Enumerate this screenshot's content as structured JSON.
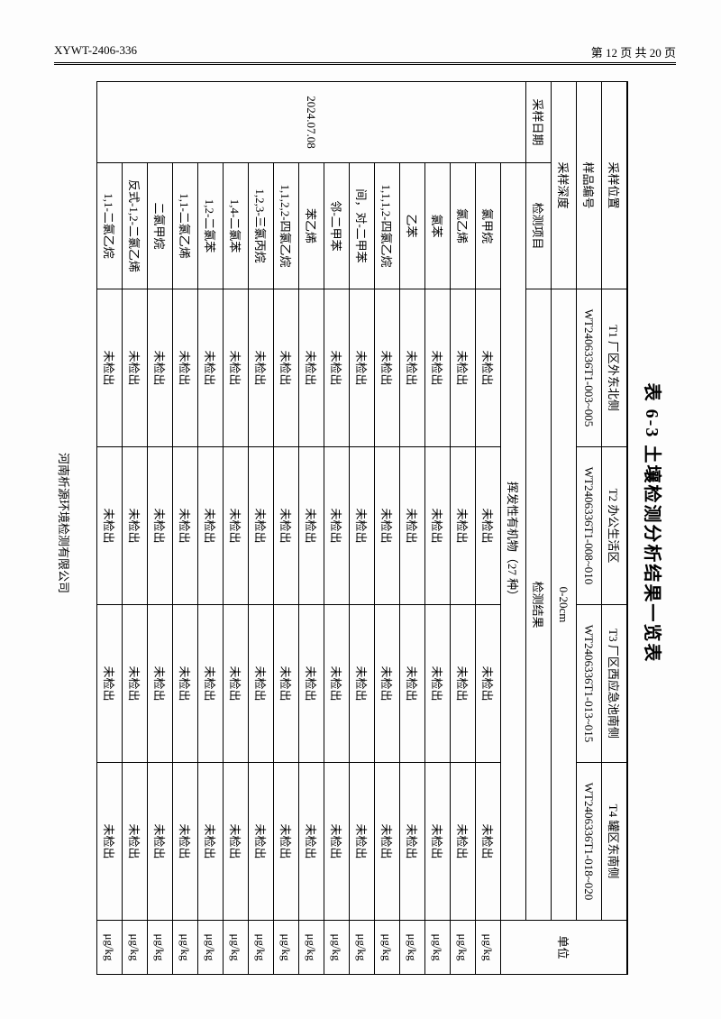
{
  "header": {
    "left": "XYWT-2406-336",
    "right": "第 12 页 共 20 页"
  },
  "title": "表 6-3  土壤检测分析结果一览表",
  "labels": {
    "sample_pos": "采样位置",
    "sample_code": "样品编号",
    "sample_depth": "采样深度",
    "sample_date": "采样日期",
    "item": "检测项目",
    "result": "检测结果",
    "unit": "单位"
  },
  "columns": {
    "t1": {
      "pos": "T1 厂区外东北侧",
      "code": "WT2406336T1-003~005"
    },
    "t2": {
      "pos": "T2 办公生活区",
      "code": "WT2406336T1-008~010"
    },
    "t3": {
      "pos": "T3 厂区西应急池南侧",
      "code": "WT2406336T1-013~015"
    },
    "t4": {
      "pos": "T4 罐区东南侧",
      "code": "WT2406336T1-018~020"
    }
  },
  "depth": "0-20cm",
  "group": "挥发性有机物（27 种）",
  "date": "2024.07.08",
  "nd": "未检出",
  "u": "μg/kg",
  "items": [
    "氯甲烷",
    "氯乙烯",
    "氯苯",
    "乙苯",
    "1,1,1,2-四氯乙烷",
    "间，对-二甲苯",
    "邻-二甲苯",
    "苯乙烯",
    "1,1,2,2-四氯乙烷",
    "1,2,3-三氯丙烷",
    "1,4-二氯苯",
    "1,2-二氯苯",
    "1,1-二氯乙烯",
    "二氯甲烷",
    "反式-1,2-二氯乙烯",
    "1,1-二氯乙烷"
  ],
  "footer": "河南析源环境检测有限公司"
}
